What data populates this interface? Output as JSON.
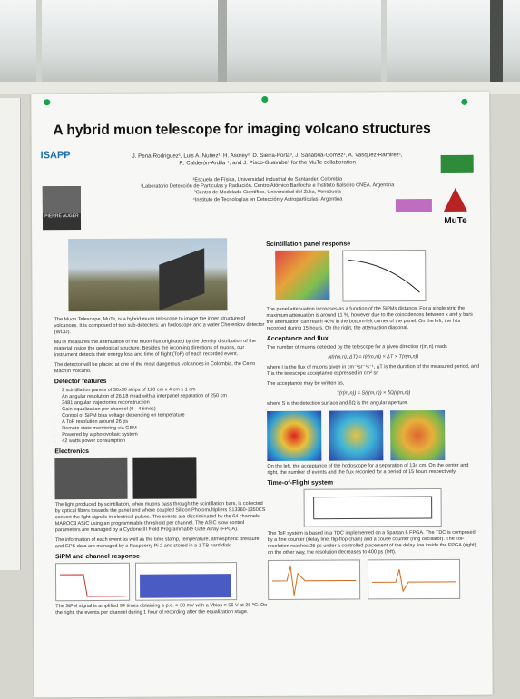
{
  "poster": {
    "title": "A hybrid muon telescope for imaging volcano structures",
    "authors": "J. Pena-Rodriguez¹, Luis A. Nuñez¹, H. Asorey², D. Sierra-Porta³, J. Sanabria-Gómez¹, A. Vasquez-Ramirez¹, R. Calderón-Ardila ⁴, and J. Pisco-Guavabe¹ for the MuTe collaboration",
    "affiliations": [
      "¹Escuela de Física, Universidad Industrial de Santander, Colombia",
      "²Laboratorio Detección de Partículas y Radiación. Centro Atómico Bariloche e Instituto Balseiro CNEA. Argentina",
      "³Centro de Modelado Científico, Universidad del Zulia, Venezuela",
      "⁴Instituto de Tecnologías en Detección y Astropartículas. Argentina"
    ],
    "logos": {
      "isapp": "ISAPP",
      "auger": "PIERRE AUGER",
      "mute": "MuTe"
    },
    "intro": [
      "The Muon Telescope, MuTe, is a hybrid muon telescope to image the inner structure of volcanoes. It is composed of two sub-detectors: an hodoscope and a water Cherenkov detector (WCD).",
      "MuTe measures the attenuation of the muon flux originated by the density distribution of the material inside  the geological structure. Besides the incoming directions of muons, our instrument detects their energy loss and time of flight (ToF) of each recorded event.",
      "The detector will be placed at one of the most dangerous volcanoes in Colombia, the Cerro Machín Volcano."
    ],
    "detector_heading": "Detector features",
    "detector_features": [
      "2 scintillation panels of 30x30 strips of 120 cm x 4 cm x 1 cm",
      "An angular resolution of 26.18 mrad with a interpanel separation of 250 cm",
      "3481 angular trajectories reconstruction",
      "Gain equalization per channel (0 - 4 times)",
      "Control of SiPM bias voltage depending on temperature",
      "A ToF resolution around 26 ps",
      "Remote state monitoring via GSM",
      "Powered by a photovoltaic system",
      "42 watts power consumption"
    ],
    "electronics_heading": "Electronics",
    "electronics_text": [
      "The light produced by scintillation, when muons pass through the scintillation bars, is collected by optical fibers towards the panel end where coupled Silicon Photomultipliers S13360-1350CS convert the light signals in electrical pulses. The events are discriminated by the 64 channels MAROC3 ASIC using an programmable threshold per channel. The ASIC slow control parameters are managed by a Cyclone III Field Programmable Gate Array (FPGA).",
      "The information of each event as well as the time stamp, temperature, atmospheric pressure and GPS data are managed by a Raspberry Pi 2 and stored in a 1 TB hard disk."
    ],
    "sipm_heading": "SiPM and channel response",
    "sipm_text": "The SiPM signal is amplified 94 times obtaining a p.e. = 30 mV with a Vbias = 56 V at 25 ºC. On the right, the events per channel during 1 hour of recording after the equalization stage.",
    "scint_heading": "Scintillation panel response",
    "scint_text": "The panel attenuation increases as a function of the SiPMs distance. For a single strip the maximum attenuation is around 11 %, however due to the coincidences between x and y bars the attenuation can reach 40% in the bottom-left corner of the panel. On the left, the hits recorded during 15 hours. On the right, the attenuation diagonal.",
    "flux_heading": "Acceptance and flux",
    "flux_text1": "The number of muons detected by the telescope for a given direction r(m,n) reads",
    "flux_eq1": "N(r(m,n), ΔT) = I(r(m,n)) × ΔT × T(r(m,n))",
    "flux_text2": "where I is the flux of muons given in cm⁻²sr⁻¹s⁻¹, ΔT is the duration of the measured period, and T is the telescope acceptance expressed in cm² sr.",
    "flux_text3": "The acceptance may be written as,",
    "flux_eq2": "T(r(m,n)) = S(r(m,n)) × δΩ(r(m,n))",
    "flux_text4": "where S is the detection surface and δΩ is the angular aperture.",
    "flux_caption": "On the left, the acceptance of the hodoscope for a separation of 134 cm. On the center and right, the number of events and  the flux recorded for a period of 15 hours respectively.",
    "tof_heading": "Time-of-Flight system",
    "tof_text": "The ToF system is based in a TDC implemented on a Spartan 6 FPGA. The TDC is composed by a fine counter (delay line, flip-flop chain) and a couse counter (ring oscillator). The ToF resolution reaches 26 ps under a controlled placement of the delay line inside the FPGA (right), on the other way, the resolution decreases to 400 ps (left)."
  }
}
